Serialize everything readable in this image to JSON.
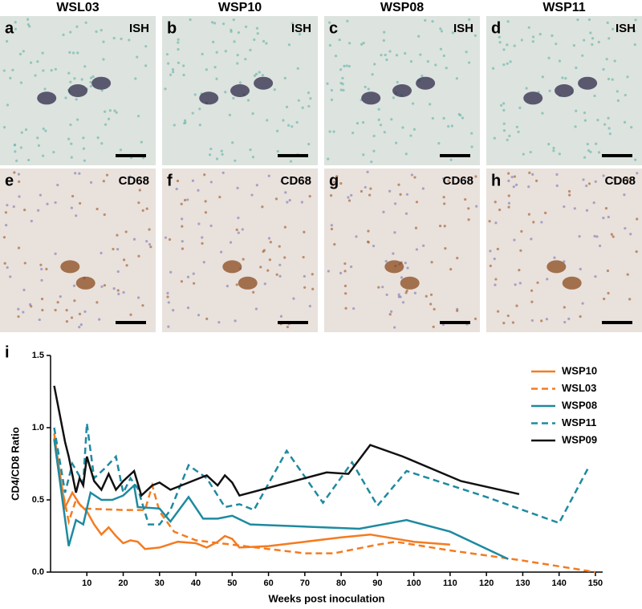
{
  "panels": {
    "headers": [
      "WSL03",
      "WSP10",
      "WSP08",
      "WSP11"
    ],
    "items": [
      {
        "letter": "a",
        "label": "ISH"
      },
      {
        "letter": "b",
        "label": "ISH"
      },
      {
        "letter": "c",
        "label": "ISH"
      },
      {
        "letter": "d",
        "label": "ISH"
      },
      {
        "letter": "e",
        "label": "CD68"
      },
      {
        "letter": "f",
        "label": "CD68"
      },
      {
        "letter": "g",
        "label": "CD68"
      },
      {
        "letter": "h",
        "label": "CD68"
      }
    ]
  },
  "chart_data": {
    "type": "line",
    "panel_letter": "i",
    "x_label": "Weeks post inoculation",
    "y_label": "CD4/CD8 Ratio",
    "xlim": [
      0,
      152
    ],
    "ylim": [
      0,
      1.5
    ],
    "xticks": [
      10,
      20,
      30,
      40,
      50,
      60,
      70,
      80,
      90,
      100,
      110,
      120,
      130,
      140,
      150
    ],
    "yticks": [
      {
        "value": 0,
        "label": "0.0"
      },
      {
        "value": 0.5,
        "label": "0.5"
      },
      {
        "value": 1,
        "label": "1.0"
      },
      {
        "value": 1.5,
        "label": "1.5"
      }
    ],
    "legend": "upper right",
    "series": [
      {
        "name": "WSP10",
        "color": "#f47b20",
        "line_style": "solid",
        "x": [
          1,
          4,
          6,
          8,
          10,
          12,
          14,
          16,
          18,
          20,
          22,
          24,
          26,
          30,
          35,
          40,
          43,
          46,
          48,
          50,
          52,
          60,
          70,
          80,
          88,
          100,
          110
        ],
        "values": [
          0.93,
          0.45,
          0.55,
          0.47,
          0.42,
          0.33,
          0.26,
          0.31,
          0.25,
          0.2,
          0.22,
          0.21,
          0.16,
          0.17,
          0.21,
          0.2,
          0.17,
          0.21,
          0.25,
          0.23,
          0.17,
          0.18,
          0.21,
          0.24,
          0.26,
          0.21,
          0.19
        ]
      },
      {
        "name": "WSL03",
        "color": "#f47b20",
        "line_style": "dashed",
        "x": [
          1,
          3,
          5,
          7,
          9,
          20,
          26,
          28,
          30,
          34,
          40,
          50,
          60,
          70,
          78,
          90,
          95,
          110,
          130,
          150
        ],
        "values": [
          0.96,
          0.6,
          0.35,
          0.5,
          0.44,
          0.43,
          0.43,
          0.6,
          0.42,
          0.28,
          0.22,
          0.19,
          0.16,
          0.13,
          0.13,
          0.19,
          0.21,
          0.15,
          0.08,
          0
        ]
      },
      {
        "name": "WSP08",
        "color": "#1e8aa0",
        "line_style": "solid",
        "x": [
          1,
          3,
          5,
          7,
          9,
          11,
          14,
          17,
          20,
          23,
          24,
          30,
          33,
          38,
          42,
          46,
          50,
          55,
          85,
          98,
          110,
          126
        ],
        "values": [
          0.92,
          0.55,
          0.18,
          0.36,
          0.33,
          0.55,
          0.5,
          0.5,
          0.53,
          0.6,
          0.45,
          0.44,
          0.35,
          0.52,
          0.37,
          0.37,
          0.39,
          0.33,
          0.3,
          0.36,
          0.28,
          0.09
        ]
      },
      {
        "name": "WSP11",
        "color": "#1e8aa0",
        "line_style": "dashed",
        "x": [
          1,
          4,
          6,
          9,
          10,
          12,
          15,
          18,
          20,
          22,
          24,
          27,
          30,
          33,
          38,
          43,
          48,
          52,
          56,
          65,
          75,
          83,
          90,
          98,
          120,
          140,
          148
        ],
        "values": [
          1.0,
          0.55,
          0.75,
          0.62,
          1.03,
          0.65,
          0.72,
          0.8,
          0.55,
          0.65,
          0.58,
          0.33,
          0.33,
          0.43,
          0.74,
          0.65,
          0.45,
          0.47,
          0.43,
          0.84,
          0.48,
          0.76,
          0.46,
          0.7,
          0.52,
          0.34,
          0.72
        ]
      },
      {
        "name": "WSP09",
        "color": "#111111",
        "line_style": "solid",
        "x": [
          1,
          4,
          5,
          7,
          8,
          9,
          10,
          12,
          14,
          16,
          18,
          20,
          23,
          25,
          28,
          30,
          33,
          43,
          46,
          48,
          50,
          52,
          76,
          82,
          88,
          97,
          113,
          129
        ],
        "values": [
          1.29,
          0.9,
          0.8,
          0.55,
          0.65,
          0.6,
          0.8,
          0.63,
          0.57,
          0.68,
          0.57,
          0.63,
          0.7,
          0.53,
          0.6,
          0.62,
          0.57,
          0.67,
          0.6,
          0.67,
          0.62,
          0.53,
          0.69,
          0.68,
          0.88,
          0.8,
          0.63,
          0.54
        ]
      }
    ]
  }
}
